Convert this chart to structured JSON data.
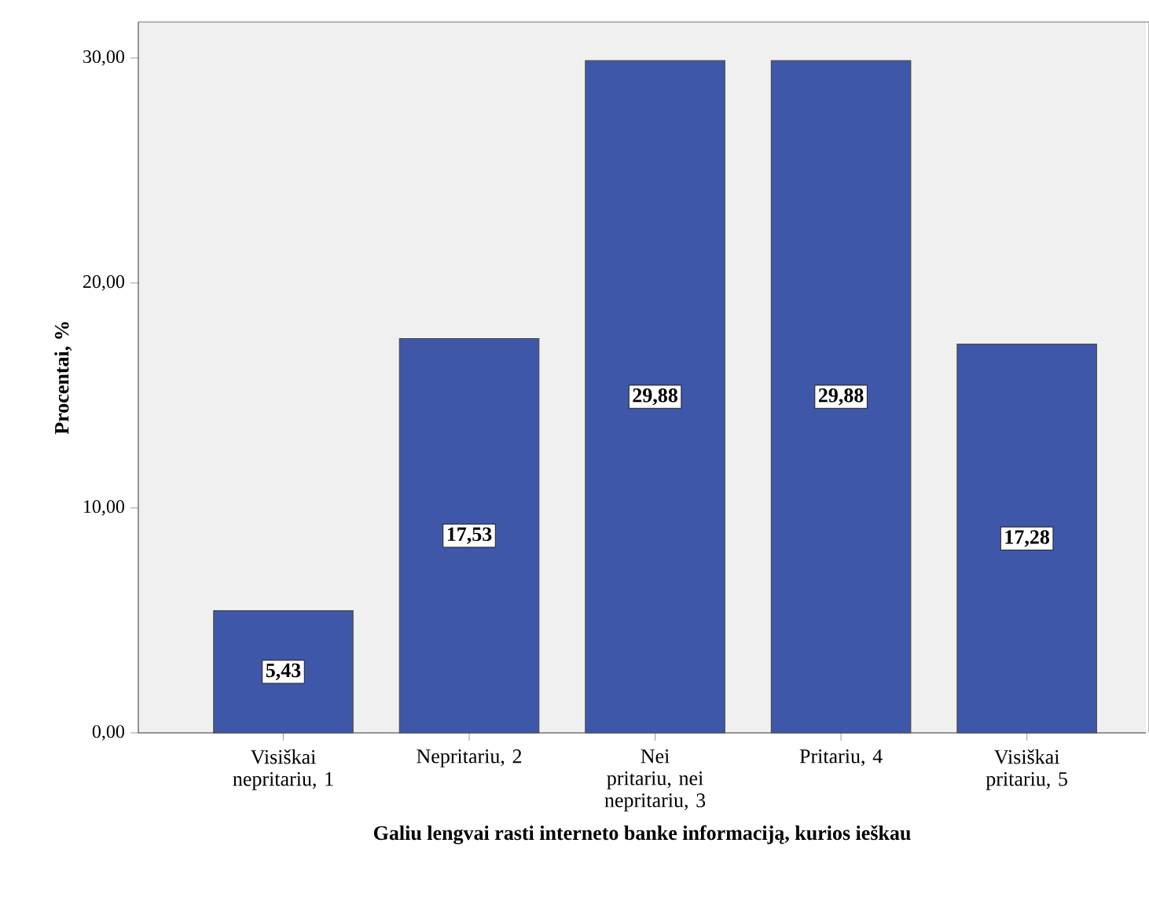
{
  "chart_data": {
    "type": "bar",
    "xlabel": "Galiu lengvai rasti interneto banke informaciją, kurios ieškau",
    "ylabel": "Procentai, %",
    "categories": [
      "Visiškai nepritariu, 1",
      "Nepritariu, 2",
      "Nei pritariu, nei nepritariu, 3",
      "Pritariu, 4",
      "Visiškai pritariu, 5"
    ],
    "values": [
      5.43,
      17.53,
      29.88,
      29.88,
      17.28
    ],
    "value_labels": [
      "5,43",
      "17,53",
      "29,88",
      "29,88",
      "17,28"
    ],
    "color": "#3f57a8",
    "ylim": [
      0,
      31.6
    ],
    "yticks": [
      {
        "value": 0,
        "label": "0,00"
      },
      {
        "value": 10,
        "label": "10,00"
      },
      {
        "value": 20,
        "label": "20,00"
      },
      {
        "value": 30,
        "label": "30,00"
      }
    ],
    "grid": false
  }
}
